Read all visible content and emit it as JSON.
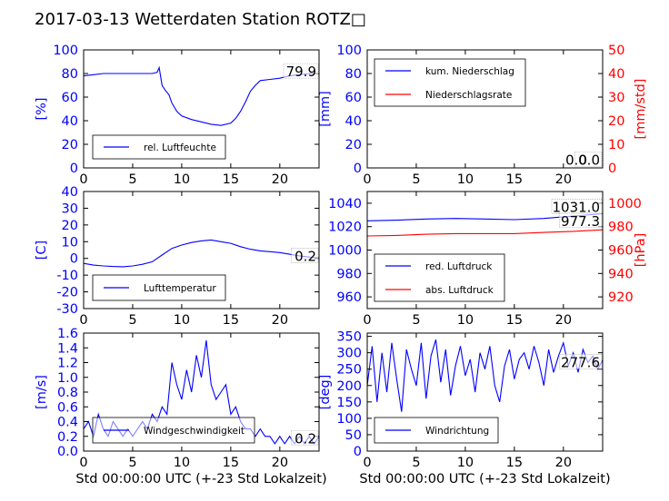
{
  "title": "2017-03-13 Wetterdaten Station ROTZ□",
  "colors": {
    "primary": "#0000ff",
    "secondary": "#ff0000",
    "axis": "#000000"
  },
  "chart_data": [
    {
      "id": "humidity",
      "type": "line",
      "xlim": [
        0,
        24
      ],
      "ylim": [
        0,
        100
      ],
      "xticks": [
        0,
        5,
        10,
        15,
        20
      ],
      "yticks": [
        0,
        20,
        40,
        60,
        80,
        100
      ],
      "ylabel": "[%]",
      "legend": {
        "placement": "bottom-left",
        "entries": [
          "rel. Luftfeuchte"
        ]
      },
      "current_value": "79.9",
      "series": [
        {
          "name": "rel. Luftfeuchte",
          "axis": "left",
          "color": "#0000ff",
          "x": [
            0,
            1,
            2,
            3,
            4,
            5,
            6,
            7,
            7.5,
            7.7,
            8,
            8.3,
            8.7,
            9,
            9.5,
            10,
            11,
            12,
            13,
            14,
            15,
            15.5,
            16,
            16.5,
            17,
            17.5,
            18,
            19,
            20,
            21,
            22,
            23,
            24
          ],
          "y": [
            78,
            79,
            80,
            80,
            80,
            80,
            80,
            80,
            81,
            85,
            70,
            66,
            62,
            55,
            48,
            44,
            41,
            39,
            37,
            36,
            38,
            42,
            48,
            56,
            65,
            70,
            74,
            75,
            76,
            78,
            79,
            80,
            79.9
          ]
        }
      ]
    },
    {
      "id": "precipitation",
      "type": "line",
      "xlim": [
        0,
        24
      ],
      "ylim": [
        0,
        100
      ],
      "ylim_right": [
        0,
        50
      ],
      "xticks": [
        0,
        5,
        10,
        15,
        20
      ],
      "yticks": [
        0,
        20,
        40,
        60,
        80,
        100
      ],
      "yticks_right": [
        0,
        10,
        20,
        30,
        40,
        50
      ],
      "ylabel": "[mm]",
      "ylabel_right": "[mm/std]",
      "legend": {
        "placement": "top-left",
        "entries": [
          "kum. Niederschlag",
          "Niederschlagsrate"
        ]
      },
      "current_value": "0.0",
      "current_value_2": "0.0",
      "series": [
        {
          "name": "kum. Niederschlag",
          "axis": "left",
          "color": "#0000ff",
          "x": [
            0,
            24
          ],
          "y": [
            0,
            0
          ]
        },
        {
          "name": "Niederschlagsrate",
          "axis": "right",
          "color": "#ff0000",
          "x": [
            0,
            24
          ],
          "y": [
            0,
            0
          ]
        }
      ]
    },
    {
      "id": "temperature",
      "type": "line",
      "xlim": [
        0,
        24
      ],
      "ylim": [
        -30,
        40
      ],
      "xticks": [
        0,
        5,
        10,
        15,
        20
      ],
      "yticks": [
        -30,
        -20,
        -10,
        0,
        10,
        20,
        30,
        40
      ],
      "ylabel": "[C]",
      "legend": {
        "placement": "bottom-left",
        "entries": [
          "Lufttemperatur"
        ]
      },
      "current_value": "0.2",
      "series": [
        {
          "name": "Lufttemperatur",
          "axis": "left",
          "color": "#0000ff",
          "x": [
            0,
            1,
            2,
            3,
            4,
            5,
            6,
            7,
            8,
            9,
            10,
            11,
            12,
            13,
            14,
            15,
            16,
            17,
            18,
            19,
            20,
            21,
            22,
            23,
            24
          ],
          "y": [
            -3,
            -4,
            -4.5,
            -4.8,
            -5,
            -4.5,
            -3.5,
            -2,
            2,
            6,
            8,
            9.5,
            10.5,
            11,
            10,
            9,
            7,
            5.5,
            4.5,
            4,
            3.5,
            2.5,
            1.5,
            0.8,
            0.2
          ]
        }
      ]
    },
    {
      "id": "pressure",
      "type": "line",
      "xlim": [
        0,
        24
      ],
      "ylim": [
        950,
        1050
      ],
      "ylim_right": [
        910,
        1010
      ],
      "xticks": [
        0,
        5,
        10,
        15,
        20
      ],
      "yticks": [
        960,
        980,
        1000,
        1020,
        1040
      ],
      "yticks_right": [
        920,
        940,
        960,
        980,
        1000
      ],
      "ylabel": "",
      "ylabel_right": "[hPa]",
      "legend": {
        "placement": "bottom-left",
        "entries": [
          "red. Luftdruck",
          "abs. Luftdruck"
        ]
      },
      "current_value": "1031.0",
      "current_value_2": "977.3",
      "series": [
        {
          "name": "red. Luftdruck",
          "axis": "left",
          "color": "#0000ff",
          "x": [
            0,
            3,
            6,
            9,
            12,
            15,
            18,
            21,
            24
          ],
          "y": [
            1025,
            1025.5,
            1026.5,
            1027,
            1026.5,
            1026,
            1027,
            1029,
            1031
          ]
        },
        {
          "name": "abs. Luftdruck",
          "axis": "right",
          "color": "#ff0000",
          "x": [
            0,
            3,
            6,
            9,
            12,
            15,
            18,
            21,
            24
          ],
          "y": [
            972,
            972.5,
            973.5,
            974,
            974,
            974,
            975,
            976,
            977.3
          ]
        }
      ]
    },
    {
      "id": "windspeed",
      "type": "line",
      "xlim": [
        0,
        24
      ],
      "ylim": [
        0,
        1.6
      ],
      "xticks": [
        0,
        5,
        10,
        15,
        20
      ],
      "yticks": [
        0.0,
        0.2,
        0.4,
        0.6,
        0.8,
        1.0,
        1.2,
        1.4,
        1.6
      ],
      "ylabel": "[m/s]",
      "xlabel": "Std 00:00:00 UTC (+-23 Std Lokalzeit)",
      "legend": {
        "placement": "bottom-left",
        "entries": [
          "Windgeschwindigkeit"
        ]
      },
      "current_value": "0.2",
      "series": [
        {
          "name": "Windgeschwindigkeit",
          "axis": "left",
          "color": "#0000ff",
          "x": [
            0,
            0.5,
            1,
            1.5,
            2,
            2.5,
            3,
            3.5,
            4,
            4.5,
            5,
            5.5,
            6,
            6.5,
            7,
            7.5,
            8,
            8.5,
            9,
            9.5,
            10,
            10.5,
            11,
            11.5,
            12,
            12.5,
            13,
            13.5,
            14,
            14.5,
            15,
            15.5,
            16,
            16.5,
            17,
            17.5,
            18,
            18.5,
            19,
            19.5,
            20,
            20.5,
            21,
            21.5,
            22,
            22.5,
            23,
            23.5,
            24
          ],
          "y": [
            0.3,
            0.4,
            0.2,
            0.5,
            0.3,
            0.2,
            0.4,
            0.3,
            0.2,
            0.3,
            0.2,
            0.3,
            0.4,
            0.3,
            0.5,
            0.4,
            0.6,
            0.5,
            1.2,
            0.9,
            0.7,
            1.1,
            0.8,
            1.3,
            1.0,
            1.5,
            0.9,
            0.7,
            0.8,
            0.9,
            0.5,
            0.6,
            0.4,
            0.3,
            0.3,
            0.2,
            0.3,
            0.2,
            0.2,
            0.1,
            0.2,
            0.1,
            0.2,
            0.1,
            0.2,
            0.1,
            0.2,
            0.1,
            0.2
          ]
        }
      ]
    },
    {
      "id": "winddirection",
      "type": "line",
      "xlim": [
        0,
        24
      ],
      "ylim": [
        0,
        360
      ],
      "xticks": [
        0,
        5,
        10,
        15,
        20
      ],
      "yticks": [
        0,
        50,
        100,
        150,
        200,
        250,
        300,
        350
      ],
      "ylabel": "[deg]",
      "xlabel": "Std 00:00:00 UTC (+-23 Std Lokalzeit)",
      "legend": {
        "placement": "bottom-left",
        "entries": [
          "Windrichtung"
        ]
      },
      "current_value": "277.6",
      "series": [
        {
          "name": "Windrichtung",
          "axis": "left",
          "color": "#0000ff",
          "x": [
            0,
            0.5,
            1,
            1.5,
            2,
            2.5,
            3,
            3.5,
            4,
            4.5,
            5,
            5.5,
            6,
            6.5,
            7,
            7.5,
            8,
            8.5,
            9,
            9.5,
            10,
            10.5,
            11,
            11.5,
            12,
            12.5,
            13,
            13.5,
            14,
            14.5,
            15,
            15.5,
            16,
            16.5,
            17,
            17.5,
            18,
            18.5,
            19,
            19.5,
            20,
            20.5,
            21,
            21.5,
            22,
            22.5,
            23,
            23.5,
            24
          ],
          "y": [
            200,
            320,
            150,
            300,
            180,
            330,
            220,
            120,
            310,
            250,
            200,
            330,
            160,
            290,
            340,
            210,
            310,
            170,
            260,
            320,
            230,
            280,
            180,
            300,
            250,
            320,
            200,
            150,
            260,
            310,
            220,
            280,
            300,
            250,
            320,
            270,
            200,
            310,
            240,
            290,
            330,
            260,
            300,
            240,
            310,
            270,
            290,
            250,
            277.6
          ]
        }
      ]
    }
  ]
}
